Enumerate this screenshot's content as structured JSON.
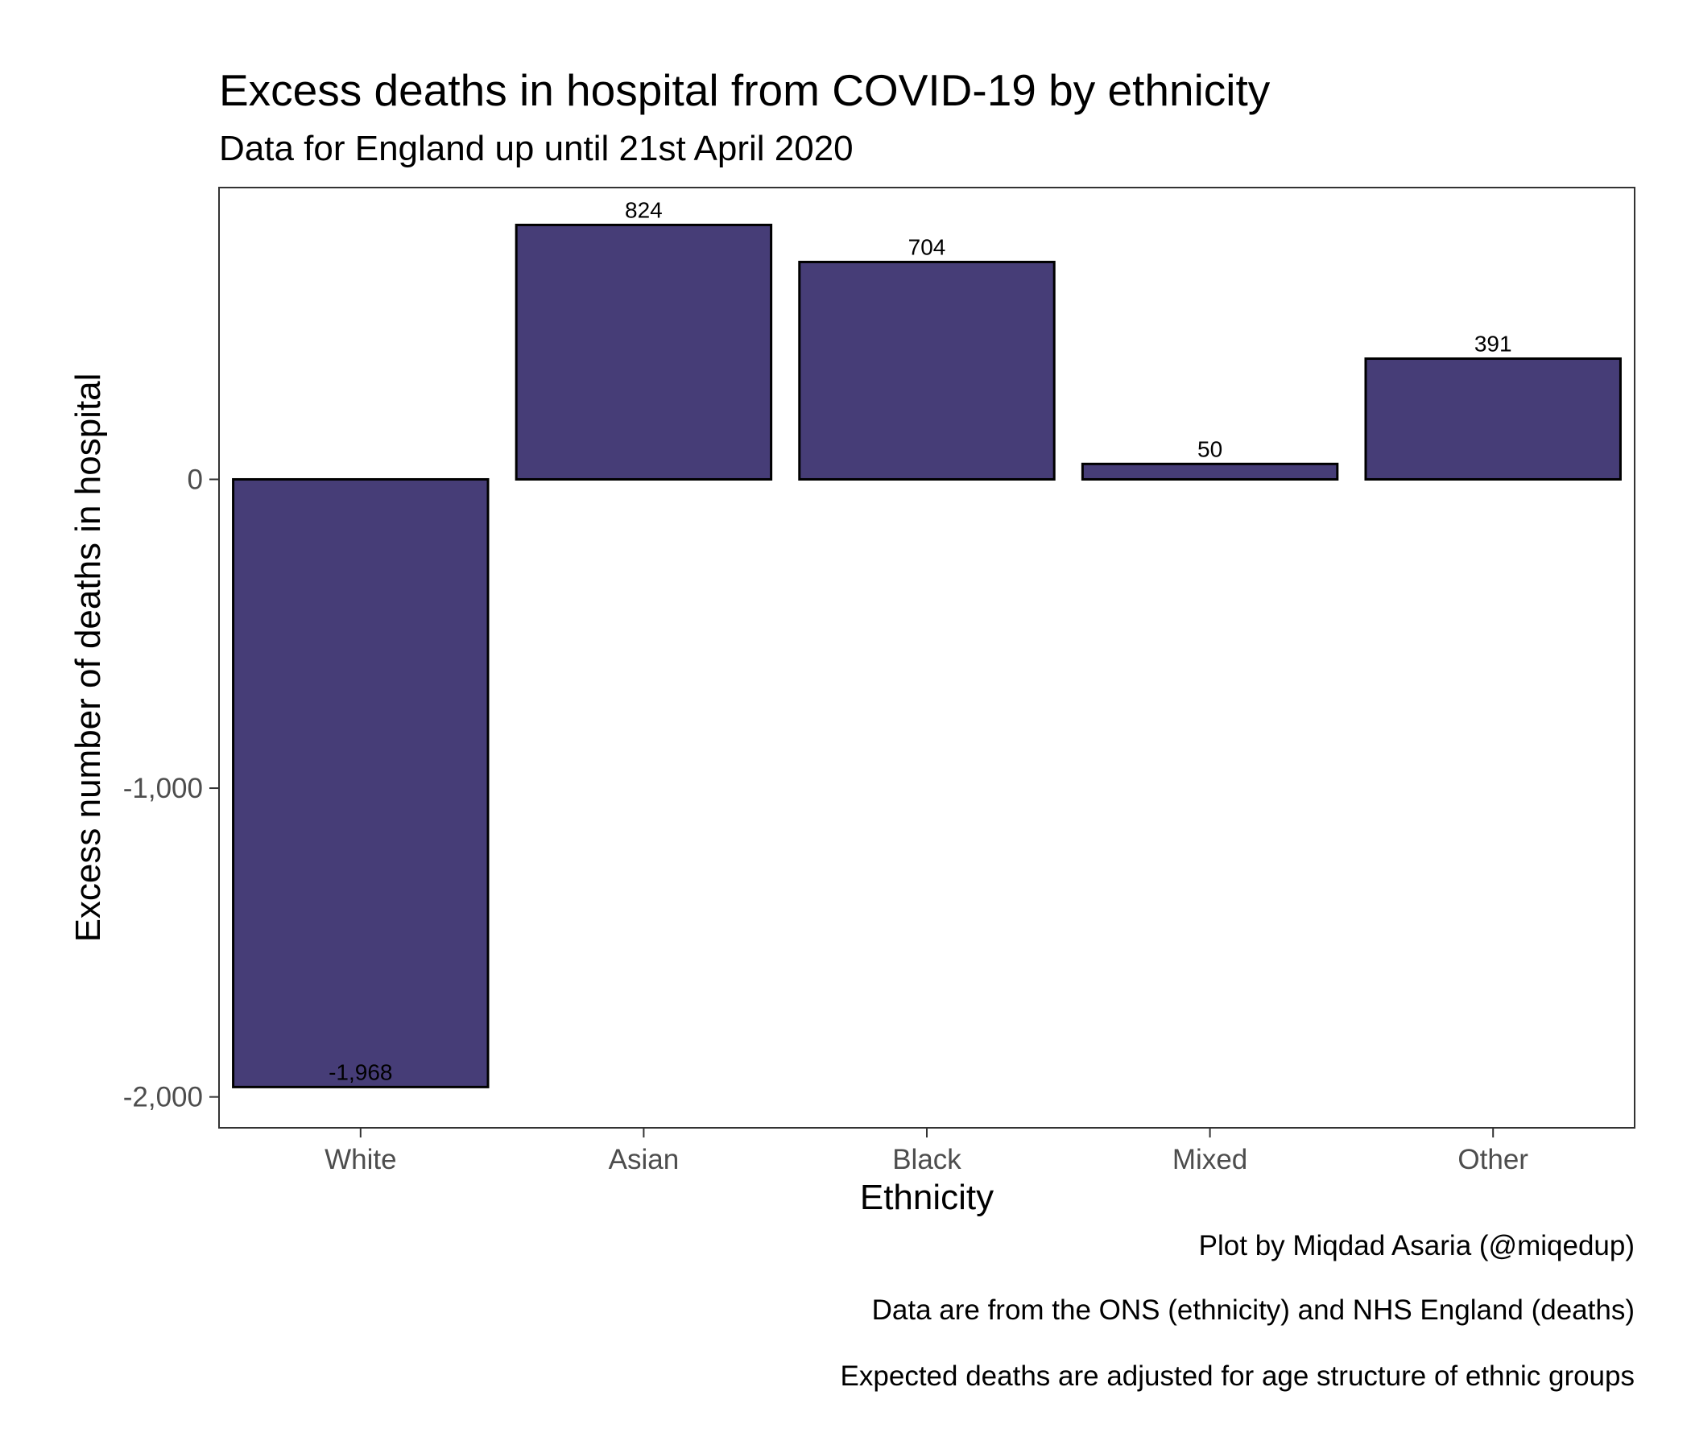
{
  "chart_data": {
    "type": "bar",
    "title": "Excess deaths in hospital from COVID-19 by ethnicity",
    "subtitle": "Data for England up until 21st April 2020",
    "xlabel": "Ethnicity",
    "ylabel": "Excess number of deaths in hospital",
    "categories": [
      "White",
      "Asian",
      "Black",
      "Mixed",
      "Other"
    ],
    "values": [
      -1968,
      824,
      704,
      50,
      391
    ],
    "value_labels": [
      "-1,968",
      "824",
      "704",
      "50",
      "391"
    ],
    "ylim": [
      -2100,
      945
    ],
    "yticks": [
      0,
      -1000,
      -2000
    ],
    "ytick_labels": [
      "0",
      "-1,000",
      "-2,000"
    ],
    "grid": false,
    "bar_color": "#463d77",
    "bar_edge_color": "#000000",
    "captions": [
      "Plot by Miqdad Asaria (@miqedup)",
      "Data are from the ONS (ethnicity) and NHS England (deaths)",
      "Expected deaths are adjusted for age structure of ethnic groups"
    ]
  }
}
